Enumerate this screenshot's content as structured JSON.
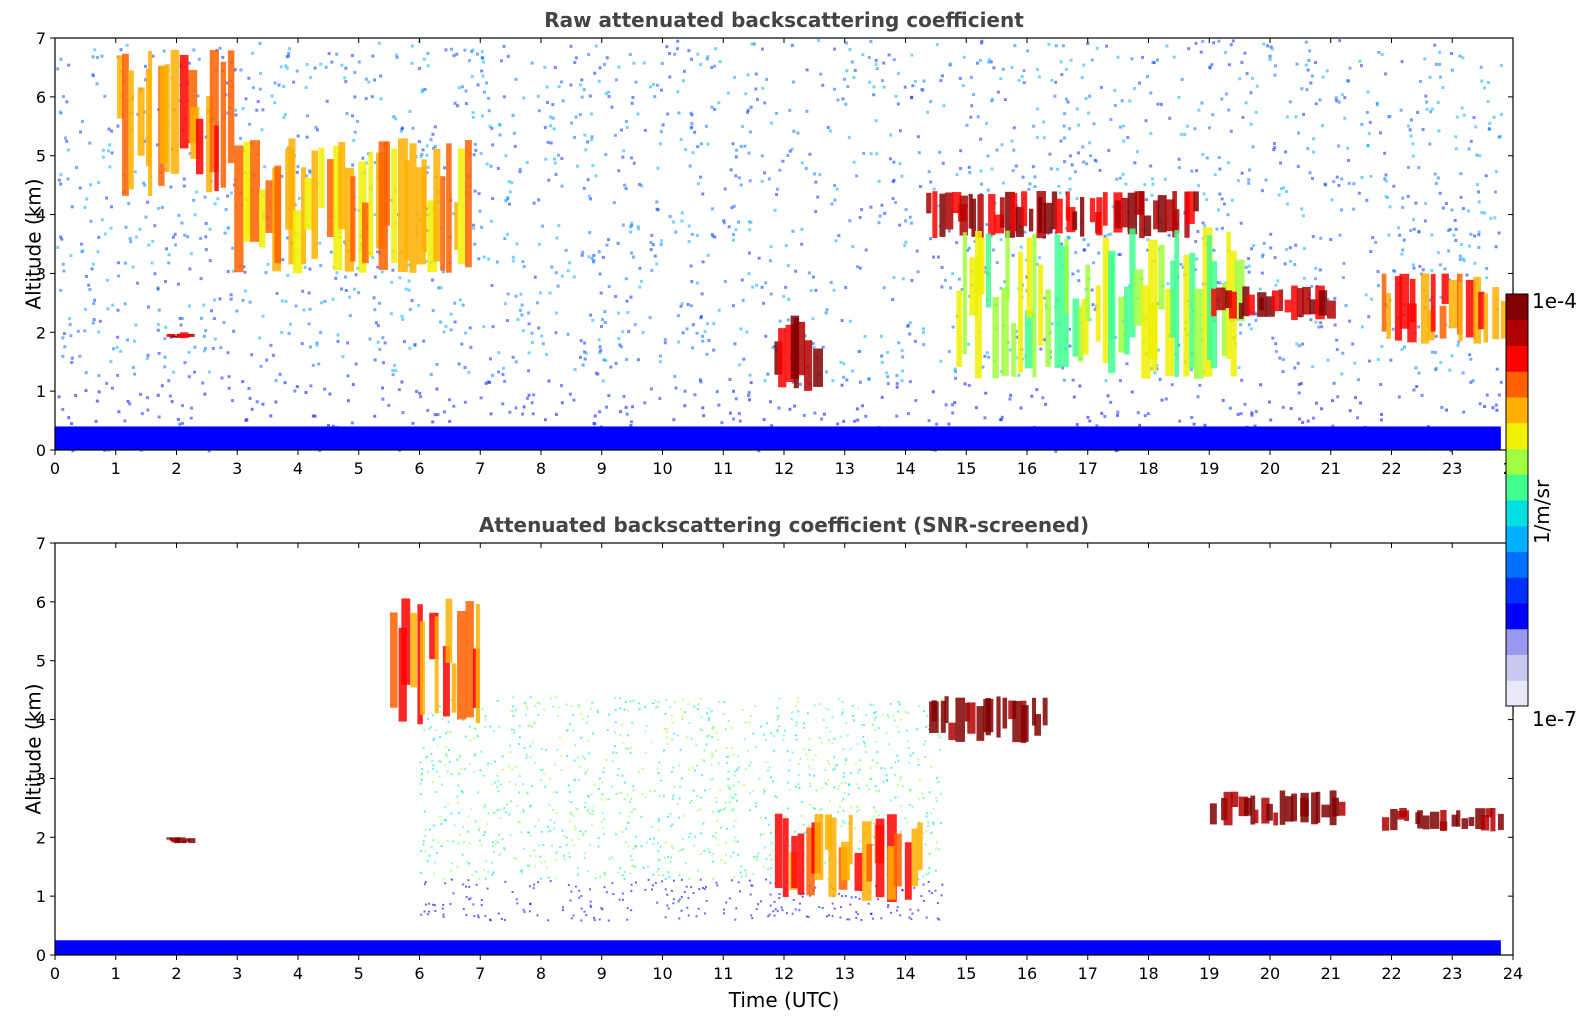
{
  "chart_data": [
    {
      "type": "heatmap",
      "title": "Raw attenuated backscattering coefficient",
      "xlabel": "",
      "ylabel": "Altitude (km)",
      "xlim": [
        0,
        24
      ],
      "ylim": [
        0,
        7
      ],
      "x_ticks": [
        "0",
        "1",
        "2",
        "3",
        "4",
        "5",
        "6",
        "7",
        "8",
        "9",
        "10",
        "11",
        "12",
        "13",
        "14",
        "15",
        "16",
        "17",
        "18",
        "19",
        "20",
        "21",
        "22",
        "23",
        "24"
      ],
      "y_ticks": [
        "0",
        "1",
        "2",
        "3",
        "4",
        "5",
        "6",
        "7"
      ],
      "features": [
        {
          "kind": "cloud",
          "t_start": 1.0,
          "t_end": 2.9,
          "alt_low": 4.3,
          "alt_high": 6.8,
          "level": "high"
        },
        {
          "kind": "cloud",
          "t_start": 2.9,
          "t_end": 6.8,
          "alt_low": 3.0,
          "alt_high": 5.3,
          "level": "medium-high"
        },
        {
          "kind": "cloud",
          "t_start": 1.8,
          "t_end": 2.2,
          "alt_low": 1.9,
          "alt_high": 2.0,
          "level": "very-high"
        },
        {
          "kind": "cloud",
          "t_start": 11.8,
          "t_end": 12.5,
          "alt_low": 1.0,
          "alt_high": 2.4,
          "level": "very-high"
        },
        {
          "kind": "cloud",
          "t_start": 14.3,
          "t_end": 18.8,
          "alt_low": 3.6,
          "alt_high": 4.4,
          "level": "very-high"
        },
        {
          "kind": "virga",
          "t_start": 14.8,
          "t_end": 19.5,
          "alt_low": 1.2,
          "alt_high": 3.8,
          "level": "medium"
        },
        {
          "kind": "cloud",
          "t_start": 19.0,
          "t_end": 21.0,
          "alt_low": 2.2,
          "alt_high": 2.8,
          "level": "very-high"
        },
        {
          "kind": "cloud",
          "t_start": 21.8,
          "t_end": 23.8,
          "alt_low": 1.8,
          "alt_high": 3.0,
          "level": "high"
        },
        {
          "kind": "boundary_layer",
          "t_start": 0,
          "t_end": 23.8,
          "alt_low": 0,
          "alt_high": 0.4,
          "level": "low"
        }
      ]
    },
    {
      "type": "heatmap",
      "title": "Attenuated backscattering coefficient (SNR-screened)",
      "xlabel": "Time (UTC)",
      "ylabel": "Altitude (km)",
      "xlim": [
        0,
        24
      ],
      "ylim": [
        0,
        7
      ],
      "x_ticks": [
        "0",
        "1",
        "2",
        "3",
        "4",
        "5",
        "6",
        "7",
        "8",
        "9",
        "10",
        "11",
        "12",
        "13",
        "14",
        "15",
        "16",
        "17",
        "18",
        "19",
        "20",
        "21",
        "22",
        "23",
        "24"
      ],
      "y_ticks": [
        "0",
        "1",
        "2",
        "3",
        "4",
        "5",
        "6",
        "7"
      ],
      "features": [
        {
          "kind": "cloud",
          "t_start": 5.5,
          "t_end": 7.0,
          "alt_low": 3.9,
          "alt_high": 6.1,
          "level": "high"
        },
        {
          "kind": "cloud",
          "t_start": 1.8,
          "t_end": 2.2,
          "alt_low": 1.9,
          "alt_high": 2.0,
          "level": "saturated"
        },
        {
          "kind": "aerosol",
          "t_start": 6.0,
          "t_end": 14.5,
          "alt_low": 0.8,
          "alt_high": 4.5,
          "level": "medium-low"
        },
        {
          "kind": "cloud",
          "t_start": 11.8,
          "t_end": 14.2,
          "alt_low": 0.9,
          "alt_high": 2.4,
          "level": "high"
        },
        {
          "kind": "cloud",
          "t_start": 14.3,
          "t_end": 16.3,
          "alt_low": 3.6,
          "alt_high": 4.4,
          "level": "saturated"
        },
        {
          "kind": "cloud",
          "t_start": 19.0,
          "t_end": 21.2,
          "alt_low": 2.2,
          "alt_high": 2.8,
          "level": "saturated"
        },
        {
          "kind": "cloud",
          "t_start": 21.8,
          "t_end": 23.8,
          "alt_low": 2.1,
          "alt_high": 2.5,
          "level": "saturated"
        },
        {
          "kind": "boundary_layer",
          "t_start": 0,
          "t_end": 23.8,
          "alt_low": 0,
          "alt_high": 0.25,
          "level": "low"
        }
      ]
    }
  ],
  "colorbar": {
    "max_label": "1e-4",
    "min_label": "1e-7",
    "unit": "1/m/sr",
    "colors": [
      "#e8e8f8",
      "#c8c8f0",
      "#9898f0",
      "#0000ff",
      "#0030ff",
      "#0070ff",
      "#00b0ff",
      "#00e0e0",
      "#40ff90",
      "#a0ff40",
      "#f0f000",
      "#ffb000",
      "#ff6000",
      "#ff0000",
      "#b00000",
      "#800000"
    ]
  }
}
